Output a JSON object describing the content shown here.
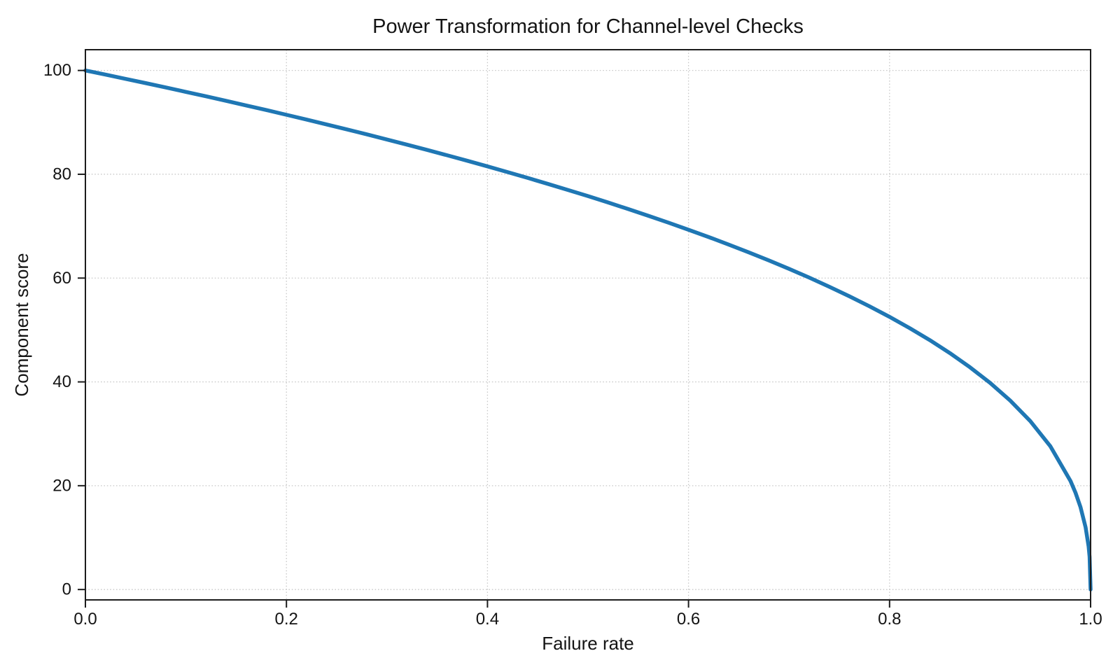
{
  "figure": {
    "background": "#ffffff",
    "axis_color": "#1c1c1c",
    "text_color": "#141414",
    "grid_color": "#c9c9c9"
  },
  "chart_data": {
    "type": "line",
    "title": "Power Transformation for Channel-level Checks",
    "xlabel": "Failure rate",
    "ylabel": "Component score",
    "xlim": [
      0.0,
      1.0
    ],
    "ylim": [
      -2,
      104
    ],
    "x_ticks": [
      0.0,
      0.2,
      0.4,
      0.6,
      0.8,
      1.0
    ],
    "x_tick_labels": [
      "0.0",
      "0.2",
      "0.4",
      "0.6",
      "0.8",
      "1.0"
    ],
    "y_ticks": [
      0,
      20,
      40,
      60,
      80,
      100
    ],
    "y_tick_labels": [
      "0",
      "20",
      "40",
      "60",
      "80",
      "100"
    ],
    "grid": true,
    "grid_style": "dotted",
    "legend": false,
    "series": [
      {
        "name": "component-score-curve",
        "color": "#1f77b4",
        "line_width": 5.5,
        "formula": "score = 100 * (1 - failure_rate)^0.4",
        "x": [
          0,
          0.02,
          0.04,
          0.06,
          0.08,
          0.1,
          0.12,
          0.14,
          0.16,
          0.18,
          0.2,
          0.22,
          0.24,
          0.26,
          0.28,
          0.3,
          0.32,
          0.34,
          0.36,
          0.38,
          0.4,
          0.42,
          0.44,
          0.46,
          0.48,
          0.5,
          0.52,
          0.54,
          0.56,
          0.58,
          0.6,
          0.62,
          0.64,
          0.66,
          0.68,
          0.7,
          0.72,
          0.74,
          0.76,
          0.78,
          0.8,
          0.82,
          0.84,
          0.86,
          0.88,
          0.9,
          0.92,
          0.94,
          0.96,
          0.98,
          0.985,
          0.99,
          0.995,
          0.998,
          0.999,
          1
        ],
        "y": [
          100,
          99.2,
          98.38,
          97.56,
          96.72,
          95.87,
          95.02,
          94.15,
          93.26,
          92.37,
          91.46,
          90.54,
          89.6,
          88.65,
          87.69,
          86.7,
          85.7,
          84.69,
          83.65,
          82.6,
          81.52,
          80.42,
          79.3,
          78.15,
          76.98,
          75.79,
          74.56,
          73.3,
          72.01,
          70.68,
          69.31,
          67.91,
          66.45,
          64.95,
          63.4,
          61.78,
          60.1,
          58.34,
          56.5,
          54.57,
          52.53,
          50.36,
          48.05,
          45.55,
          42.82,
          39.81,
          36.41,
          32.45,
          27.59,
          20.91,
          18.64,
          15.85,
          12.01,
          8.33,
          6.31,
          0
        ]
      }
    ]
  }
}
